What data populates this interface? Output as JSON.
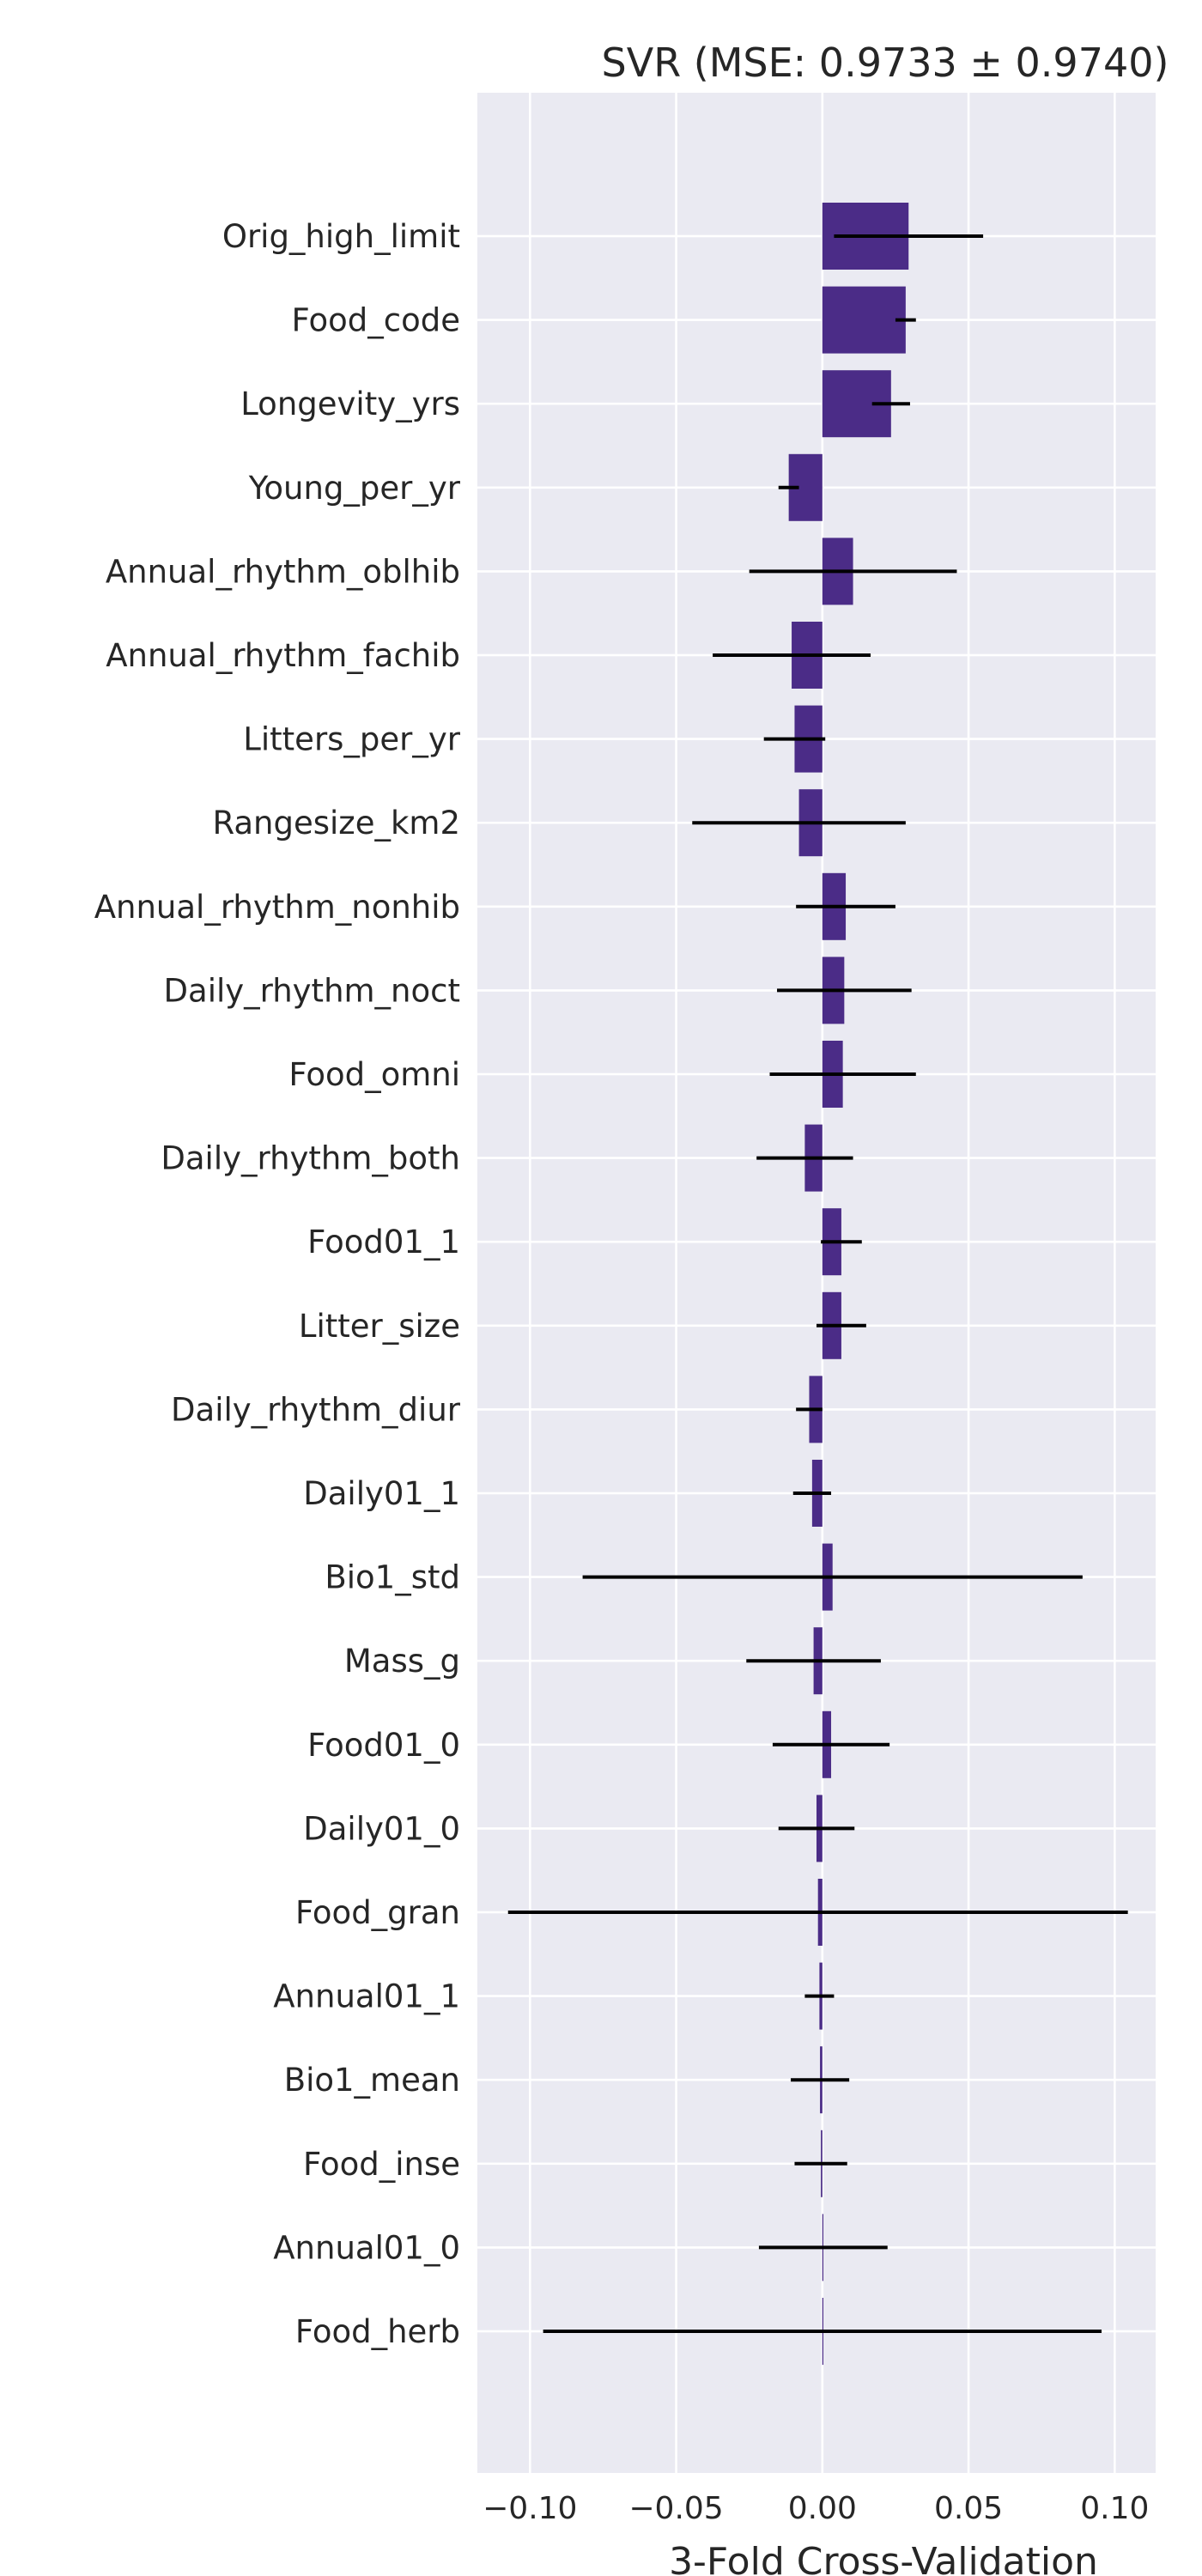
{
  "chart_data": {
    "type": "bar",
    "orientation": "horizontal",
    "title": "SVR (MSE: 0.9733 ± 0.9740)",
    "xlabel": "3-Fold Cross-Validation",
    "ylabel": "",
    "xlim": [
      -0.118,
      0.114
    ],
    "x_ticks": [
      -0.1,
      -0.05,
      0.0,
      0.05,
      0.1
    ],
    "x_tick_labels": [
      "−0.10",
      "−0.05",
      "0.00",
      "0.05",
      "0.10"
    ],
    "grid": true,
    "legend": "none",
    "colors": {
      "bar": "#4b2c87",
      "error_bar": "#000000",
      "plot_background": "#eaeaf2",
      "grid": "#ffffff",
      "text": "#262626"
    },
    "categories": [
      "Orig_high_limit",
      "Food_code",
      "Longevity_yrs",
      "Young_per_yr",
      "Annual_rhythm_oblhib",
      "Annual_rhythm_fachib",
      "Litters_per_yr",
      "Rangesize_km2",
      "Annual_rhythm_nonhib",
      "Daily_rhythm_noct",
      "Food_omni",
      "Daily_rhythm_both",
      "Food01_1",
      "Litter_size",
      "Daily_rhythm_diur",
      "Daily01_1",
      "Bio1_std",
      "Mass_g",
      "Food01_0",
      "Daily01_0",
      "Food_gran",
      "Annual01_1",
      "Bio1_mean",
      "Food_inse",
      "Annual01_0",
      "Food_herb"
    ],
    "values": [
      0.0295,
      0.0285,
      0.0235,
      -0.0115,
      0.0105,
      -0.0105,
      -0.0095,
      -0.008,
      0.008,
      0.0075,
      0.007,
      -0.006,
      0.0065,
      0.0065,
      -0.0045,
      -0.0035,
      0.0035,
      -0.003,
      0.003,
      -0.002,
      -0.0015,
      -0.001,
      -0.0008,
      -0.0005,
      0.0003,
      0.0
    ],
    "errors": [
      0.0255,
      0.0035,
      0.0065,
      0.0035,
      0.0355,
      0.027,
      0.0105,
      0.0365,
      0.017,
      0.023,
      0.025,
      0.0165,
      0.007,
      0.0085,
      0.0045,
      0.0065,
      0.0855,
      0.023,
      0.02,
      0.013,
      0.106,
      0.005,
      0.01,
      0.009,
      0.022,
      0.0955
    ]
  }
}
